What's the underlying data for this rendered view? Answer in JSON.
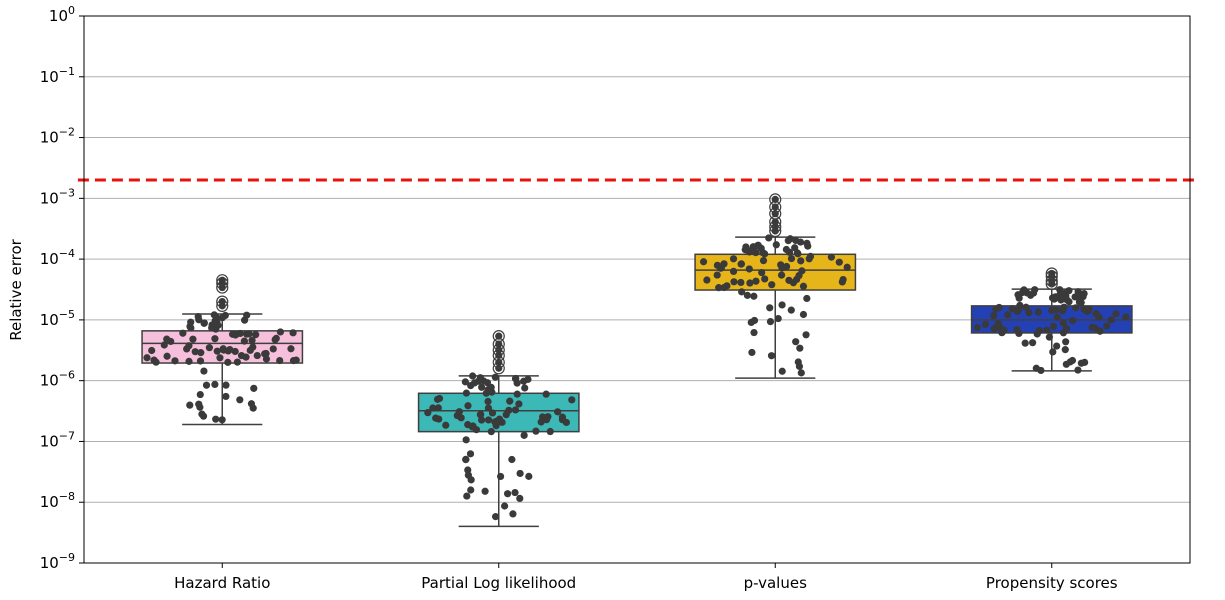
{
  "chart_data": {
    "type": "box",
    "title": "",
    "xlabel": "",
    "ylabel": "Relative error",
    "yscale": "log",
    "ylim": [
      1e-09,
      1
    ],
    "yticks": [
      {
        "value": 1e-09,
        "base": "10",
        "exp": "−9"
      },
      {
        "value": 1e-08,
        "base": "10",
        "exp": "−8"
      },
      {
        "value": 1e-07,
        "base": "10",
        "exp": "−7"
      },
      {
        "value": 1e-06,
        "base": "10",
        "exp": "−6"
      },
      {
        "value": 1e-05,
        "base": "10",
        "exp": "−5"
      },
      {
        "value": 0.0001,
        "base": "10",
        "exp": "−4"
      },
      {
        "value": 0.001,
        "base": "10",
        "exp": "−3"
      },
      {
        "value": 0.01,
        "base": "10",
        "exp": "−2"
      },
      {
        "value": 0.1,
        "base": "10",
        "exp": "−1"
      },
      {
        "value": 1,
        "base": "10",
        "exp": "0"
      }
    ],
    "grid": "horizontal",
    "reference_line": {
      "value": 0.002,
      "color": "#e8120c",
      "style": "dashed"
    },
    "categories": [
      "Hazard Ratio",
      "Partial Log likelihood",
      "p-values",
      "Propensity scores"
    ],
    "boxes": [
      {
        "category": "Hazard Ratio",
        "color": "#f6bfdc",
        "whisker_low": 1.9e-07,
        "q1": 1.95e-06,
        "median": 4.1e-06,
        "q3": 6.6e-06,
        "whisker_high": 1.25e-05,
        "outliers": [
          1.7e-05,
          2e-05,
          3.4e-05,
          4e-05,
          4.5e-05
        ]
      },
      {
        "category": "Partial Log likelihood",
        "color": "#3cb8b6",
        "whisker_low": 4e-09,
        "q1": 1.45e-07,
        "median": 3.2e-07,
        "q3": 6.2e-07,
        "whisker_high": 1.2e-06,
        "outliers": [
          1.6e-06,
          2e-06,
          2.6e-06,
          3.2e-06,
          4e-06,
          5.4e-06
        ]
      },
      {
        "category": "p-values",
        "color": "#e6b51a",
        "whisker_low": 1.1e-06,
        "q1": 3.1e-05,
        "median": 6.6e-05,
        "q3": 0.00012,
        "whisker_high": 0.00023,
        "outliers": [
          0.00029,
          0.00034,
          0.00041,
          0.00056,
          0.00072,
          0.00096
        ]
      },
      {
        "category": "Propensity scores",
        "color": "#2340b5",
        "whisker_low": 1.45e-06,
        "q1": 6.1e-06,
        "median": 1e-05,
        "q3": 1.7e-05,
        "whisker_high": 3.2e-05,
        "outliers": [
          3.9e-05,
          4.4e-05,
          5.2e-05,
          5.8e-05
        ]
      }
    ],
    "swarm_color": "#3a3a3a",
    "box_edge_color": "#3f3f3f"
  }
}
